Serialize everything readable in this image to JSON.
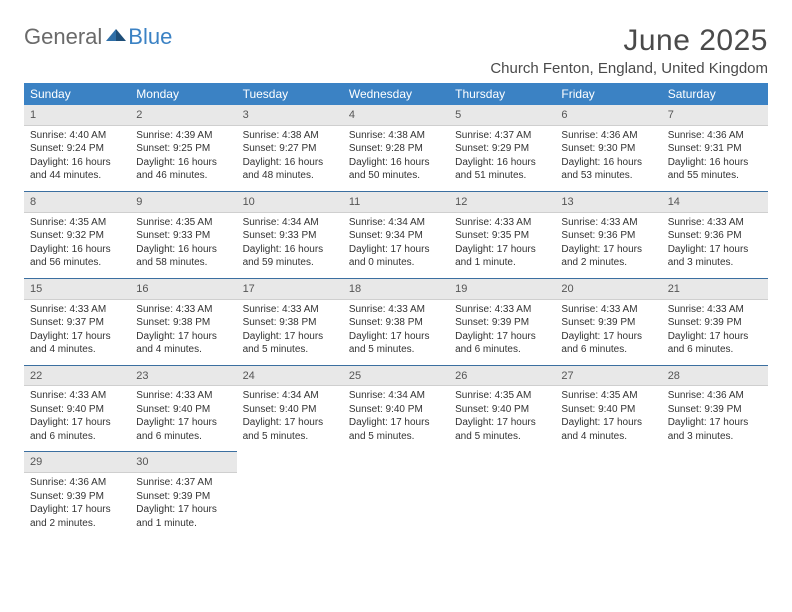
{
  "brand": {
    "part1": "General",
    "part2": "Blue",
    "color_general": "#6a6a6a",
    "color_blue": "#3b82c4"
  },
  "title": "June 2025",
  "location": "Church Fenton, England, United Kingdom",
  "colors": {
    "header_bg": "#3b82c4",
    "header_text": "#ffffff",
    "daynum_bg": "#e8e8e8",
    "rule": "#3b6fa0",
    "text": "#333333"
  },
  "weekdays": [
    "Sunday",
    "Monday",
    "Tuesday",
    "Wednesday",
    "Thursday",
    "Friday",
    "Saturday"
  ],
  "weeks": [
    [
      {
        "num": "1",
        "sunrise": "Sunrise: 4:40 AM",
        "sunset": "Sunset: 9:24 PM",
        "daylight": "Daylight: 16 hours and 44 minutes."
      },
      {
        "num": "2",
        "sunrise": "Sunrise: 4:39 AM",
        "sunset": "Sunset: 9:25 PM",
        "daylight": "Daylight: 16 hours and 46 minutes."
      },
      {
        "num": "3",
        "sunrise": "Sunrise: 4:38 AM",
        "sunset": "Sunset: 9:27 PM",
        "daylight": "Daylight: 16 hours and 48 minutes."
      },
      {
        "num": "4",
        "sunrise": "Sunrise: 4:38 AM",
        "sunset": "Sunset: 9:28 PM",
        "daylight": "Daylight: 16 hours and 50 minutes."
      },
      {
        "num": "5",
        "sunrise": "Sunrise: 4:37 AM",
        "sunset": "Sunset: 9:29 PM",
        "daylight": "Daylight: 16 hours and 51 minutes."
      },
      {
        "num": "6",
        "sunrise": "Sunrise: 4:36 AM",
        "sunset": "Sunset: 9:30 PM",
        "daylight": "Daylight: 16 hours and 53 minutes."
      },
      {
        "num": "7",
        "sunrise": "Sunrise: 4:36 AM",
        "sunset": "Sunset: 9:31 PM",
        "daylight": "Daylight: 16 hours and 55 minutes."
      }
    ],
    [
      {
        "num": "8",
        "sunrise": "Sunrise: 4:35 AM",
        "sunset": "Sunset: 9:32 PM",
        "daylight": "Daylight: 16 hours and 56 minutes."
      },
      {
        "num": "9",
        "sunrise": "Sunrise: 4:35 AM",
        "sunset": "Sunset: 9:33 PM",
        "daylight": "Daylight: 16 hours and 58 minutes."
      },
      {
        "num": "10",
        "sunrise": "Sunrise: 4:34 AM",
        "sunset": "Sunset: 9:33 PM",
        "daylight": "Daylight: 16 hours and 59 minutes."
      },
      {
        "num": "11",
        "sunrise": "Sunrise: 4:34 AM",
        "sunset": "Sunset: 9:34 PM",
        "daylight": "Daylight: 17 hours and 0 minutes."
      },
      {
        "num": "12",
        "sunrise": "Sunrise: 4:33 AM",
        "sunset": "Sunset: 9:35 PM",
        "daylight": "Daylight: 17 hours and 1 minute."
      },
      {
        "num": "13",
        "sunrise": "Sunrise: 4:33 AM",
        "sunset": "Sunset: 9:36 PM",
        "daylight": "Daylight: 17 hours and 2 minutes."
      },
      {
        "num": "14",
        "sunrise": "Sunrise: 4:33 AM",
        "sunset": "Sunset: 9:36 PM",
        "daylight": "Daylight: 17 hours and 3 minutes."
      }
    ],
    [
      {
        "num": "15",
        "sunrise": "Sunrise: 4:33 AM",
        "sunset": "Sunset: 9:37 PM",
        "daylight": "Daylight: 17 hours and 4 minutes."
      },
      {
        "num": "16",
        "sunrise": "Sunrise: 4:33 AM",
        "sunset": "Sunset: 9:38 PM",
        "daylight": "Daylight: 17 hours and 4 minutes."
      },
      {
        "num": "17",
        "sunrise": "Sunrise: 4:33 AM",
        "sunset": "Sunset: 9:38 PM",
        "daylight": "Daylight: 17 hours and 5 minutes."
      },
      {
        "num": "18",
        "sunrise": "Sunrise: 4:33 AM",
        "sunset": "Sunset: 9:38 PM",
        "daylight": "Daylight: 17 hours and 5 minutes."
      },
      {
        "num": "19",
        "sunrise": "Sunrise: 4:33 AM",
        "sunset": "Sunset: 9:39 PM",
        "daylight": "Daylight: 17 hours and 6 minutes."
      },
      {
        "num": "20",
        "sunrise": "Sunrise: 4:33 AM",
        "sunset": "Sunset: 9:39 PM",
        "daylight": "Daylight: 17 hours and 6 minutes."
      },
      {
        "num": "21",
        "sunrise": "Sunrise: 4:33 AM",
        "sunset": "Sunset: 9:39 PM",
        "daylight": "Daylight: 17 hours and 6 minutes."
      }
    ],
    [
      {
        "num": "22",
        "sunrise": "Sunrise: 4:33 AM",
        "sunset": "Sunset: 9:40 PM",
        "daylight": "Daylight: 17 hours and 6 minutes."
      },
      {
        "num": "23",
        "sunrise": "Sunrise: 4:33 AM",
        "sunset": "Sunset: 9:40 PM",
        "daylight": "Daylight: 17 hours and 6 minutes."
      },
      {
        "num": "24",
        "sunrise": "Sunrise: 4:34 AM",
        "sunset": "Sunset: 9:40 PM",
        "daylight": "Daylight: 17 hours and 5 minutes."
      },
      {
        "num": "25",
        "sunrise": "Sunrise: 4:34 AM",
        "sunset": "Sunset: 9:40 PM",
        "daylight": "Daylight: 17 hours and 5 minutes."
      },
      {
        "num": "26",
        "sunrise": "Sunrise: 4:35 AM",
        "sunset": "Sunset: 9:40 PM",
        "daylight": "Daylight: 17 hours and 5 minutes."
      },
      {
        "num": "27",
        "sunrise": "Sunrise: 4:35 AM",
        "sunset": "Sunset: 9:40 PM",
        "daylight": "Daylight: 17 hours and 4 minutes."
      },
      {
        "num": "28",
        "sunrise": "Sunrise: 4:36 AM",
        "sunset": "Sunset: 9:39 PM",
        "daylight": "Daylight: 17 hours and 3 minutes."
      }
    ],
    [
      {
        "num": "29",
        "sunrise": "Sunrise: 4:36 AM",
        "sunset": "Sunset: 9:39 PM",
        "daylight": "Daylight: 17 hours and 2 minutes."
      },
      {
        "num": "30",
        "sunrise": "Sunrise: 4:37 AM",
        "sunset": "Sunset: 9:39 PM",
        "daylight": "Daylight: 17 hours and 1 minute."
      },
      null,
      null,
      null,
      null,
      null
    ]
  ]
}
